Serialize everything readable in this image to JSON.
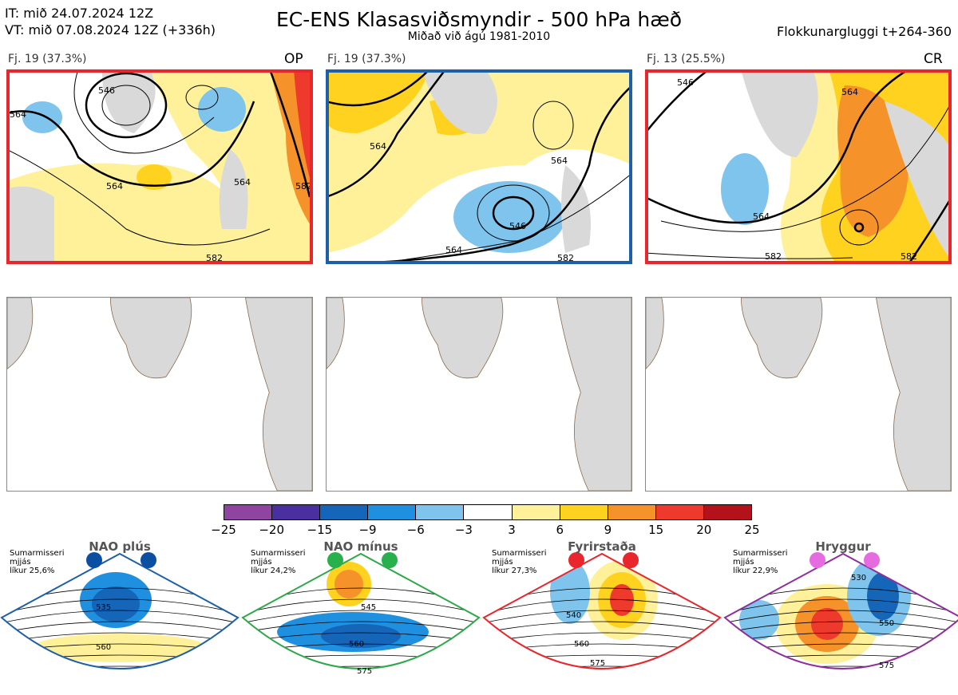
{
  "header": {
    "it_line": "IT: mið 24.07.2024 12Z",
    "vt_line": "VT: mið 07.08.2024 12Z  (+336h)",
    "title": "EC-ENS Klasasviðsmyndir - 500 hPa hæð",
    "subtitle": "Miðað við ágú 1981-2010",
    "window": "Flokkunargluggi t+264-360"
  },
  "clusters": [
    {
      "label": "Fj. 19 (37.3%)",
      "tag": "OP",
      "frame_color": "#e8262b",
      "contour_labels": [
        "546",
        "564",
        "564",
        "564",
        "582",
        "582"
      ]
    },
    {
      "label": "Fj. 19 (37.3%)",
      "tag": "",
      "frame_color": "#1f5fa8",
      "contour_labels": [
        "564",
        "564",
        "546",
        "564",
        "582"
      ]
    },
    {
      "label": "Fj. 13 (25.5%)",
      "tag": "CR",
      "frame_color": "#e8262b",
      "contour_labels": [
        "546",
        "564",
        "564",
        "582",
        "582"
      ]
    }
  ],
  "colorbar": {
    "ticks": [
      "−25",
      "−20",
      "−15",
      "−9",
      "−6",
      "−3",
      "3",
      "6",
      "9",
      "15",
      "20",
      "25"
    ],
    "colors": [
      "#8e44a0",
      "#4a2fa0",
      "#1565b8",
      "#1f8fe0",
      "#7fc4ec",
      "#ffffff",
      "#fff19a",
      "#ffd21f",
      "#f5922a",
      "#ee3a2d",
      "#b3121b"
    ]
  },
  "regimes": [
    {
      "name": "NAO plús",
      "meta": [
        "Sumarmisseri",
        "mjjás",
        "líkur 25,6%"
      ],
      "dot_color": "#0b4fa3",
      "frame_color": "#1f5fa8",
      "contour_labels": [
        "535",
        "560"
      ]
    },
    {
      "name": "NAO mínus",
      "meta": [
        "Sumarmisseri",
        "mjjás",
        "líkur 24,2%"
      ],
      "dot_color": "#27b04b",
      "frame_color": "#2fa84a",
      "contour_labels": [
        "545",
        "560",
        "575"
      ]
    },
    {
      "name": "Fyrirstaða",
      "meta": [
        "Sumarmisseri",
        "mjjás",
        "líkur 27,3%"
      ],
      "dot_color": "#e8262b",
      "frame_color": "#e8262b",
      "contour_labels": [
        "540",
        "560",
        "575"
      ]
    },
    {
      "name": "Hryggur",
      "meta": [
        "Sumarmisseri",
        "mjjás",
        "líkur 22,9%"
      ],
      "dot_color": "#e66be0",
      "frame_color": "#8e2f9c",
      "contour_labels": [
        "530",
        "550",
        "575"
      ]
    }
  ]
}
